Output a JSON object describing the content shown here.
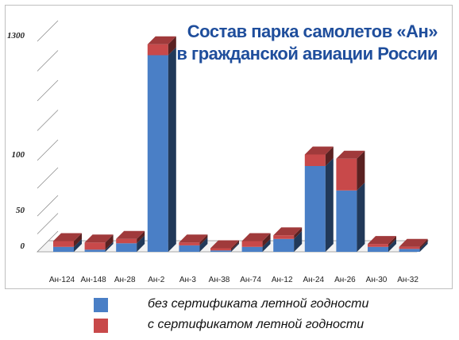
{
  "chart_data": {
    "type": "bar",
    "stacked": true,
    "title_lines": [
      "Состав парка самолетов «Ан»",
      "в гражданской авиации России"
    ],
    "categories": [
      "Ан-124",
      "Ан-148",
      "Ан-28",
      "Ан-2",
      "Ан-3",
      "Ан-38",
      "Ан-74",
      "Ан-12",
      "Ан-24",
      "Ан-26",
      "Ан-30",
      "Ан-32"
    ],
    "series": [
      {
        "name": "без сертификата летной годности",
        "color": "#4a7fc6",
        "values": [
          7,
          3,
          12,
          1160,
          9,
          2,
          7,
          18,
          95,
          73,
          7,
          4
        ]
      },
      {
        "name": "с сертификатом летной годности",
        "color": "#c8494a",
        "values": [
          8,
          10,
          6,
          110,
          4,
          3,
          8,
          5,
          65,
          45,
          4,
          3
        ]
      }
    ],
    "y_ticks": [
      "0",
      "50",
      "100",
      "1300"
    ],
    "y_scale": "broken",
    "grid": true,
    "legend_position": "bottom"
  }
}
